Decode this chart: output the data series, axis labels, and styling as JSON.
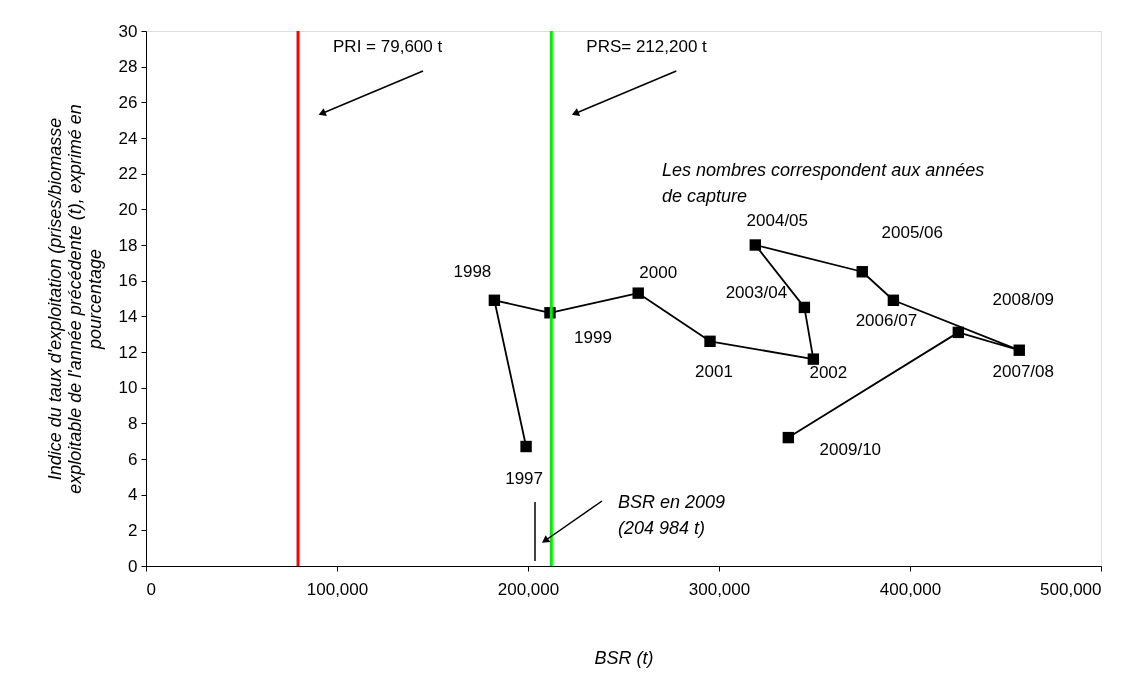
{
  "chart_data": {
    "type": "line",
    "xlabel": "BSR (t)",
    "ylabel": "Indice du taux d'exploitation (prises/biomasse\nexploitable de l'année précédente (t), exprimé en\npourcentage",
    "x": [
      199000,
      182400,
      211500,
      257700,
      295300,
      349400,
      344700,
      319000,
      375000,
      391300,
      457200,
      425300,
      336300
    ],
    "series": [
      {
        "color": "#000000",
        "values": [
          6.7,
          14.9,
          14.2,
          15.3,
          12.6,
          11.6,
          14.5,
          18.0,
          16.5,
          14.9,
          12.1,
          13.1,
          7.2
        ]
      }
    ],
    "marker": "square",
    "line_style": "solid",
    "grid": false,
    "xlim": [
      0,
      500000
    ],
    "xticks": [
      0,
      {
        "value": 100000,
        "label": "100,000"
      },
      {
        "value": 200000,
        "label": "200,000"
      },
      {
        "value": 300000,
        "label": "300,000"
      },
      {
        "value": 400000,
        "label": "400,000"
      },
      {
        "value": 500000,
        "label": "500,000"
      }
    ],
    "ylim": [
      0,
      30
    ],
    "yticks": [
      0,
      2,
      4,
      6,
      8,
      10,
      12,
      14,
      16,
      18,
      20,
      22,
      24,
      26,
      28,
      30
    ],
    "ref_lines": [
      {
        "axis": "x",
        "value": 79600,
        "label": "PRI = 79,600 t",
        "color": "#ff0000"
      },
      {
        "axis": "x",
        "value": 212200,
        "label": "PRS= 212,200 t",
        "color": "#00ee00"
      }
    ],
    "annotations": [
      {
        "text": "1997",
        "x": 199000,
        "y": 6.7
      },
      {
        "text": "1998",
        "x": 182400,
        "y": 14.9
      },
      {
        "text": "1999",
        "x": 211500,
        "y": 14.2
      },
      {
        "text": "2000",
        "x": 257700,
        "y": 15.3
      },
      {
        "text": "2001",
        "x": 295300,
        "y": 12.6
      },
      {
        "text": "2002",
        "x": 349400,
        "y": 11.6
      },
      {
        "text": "2003/04",
        "x": 344700,
        "y": 14.5
      },
      {
        "text": "2004/05",
        "x": 319000,
        "y": 18.0
      },
      {
        "text": "2005/06",
        "x": 375000,
        "y": 16.5
      },
      {
        "text": "2006/07",
        "x": 391300,
        "y": 14.9
      },
      {
        "text": "2007/08",
        "x": 457200,
        "y": 12.1
      },
      {
        "text": "2008/09",
        "x": 425300,
        "y": 13.1
      },
      {
        "text": "2009/10",
        "x": 336300,
        "y": 7.2
      },
      "BSR en 2009\n(204 984 t)",
      "Les nombres correspondent aux années\nde capture"
    ]
  }
}
